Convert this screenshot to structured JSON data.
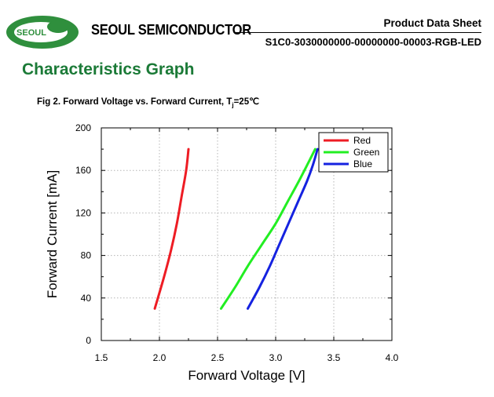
{
  "header": {
    "logo_text": "SEOUL",
    "brand": "SEOUL SEMICONDUCTOR",
    "doc_type": "Product Data Sheet",
    "part_number": "S1C0-3030000000-00000000-00003-RGB-LED"
  },
  "section_title": "Characteristics Graph",
  "figure": {
    "title_prefix": "Fig 2. Forward Voltage vs. Forward Current, T",
    "title_sub": "j",
    "title_suffix": "=25℃"
  },
  "chart_data": {
    "type": "line",
    "xlabel": "Forward Voltage [V]",
    "ylabel": "Forward Current [mA]",
    "xlim": [
      1.5,
      4.0
    ],
    "ylim": [
      0,
      200
    ],
    "xticks": [
      "1.5",
      "2.0",
      "2.5",
      "3.0",
      "3.5",
      "4.0"
    ],
    "yticks": [
      "0",
      "40",
      "80",
      "120",
      "160",
      "200"
    ],
    "grid": true,
    "legend_position": "top-right",
    "series": [
      {
        "name": "Red",
        "color": "#ee1c24",
        "x": [
          1.96,
          2.04,
          2.1,
          2.15,
          2.19,
          2.23,
          2.25
        ],
        "y": [
          30,
          60,
          85,
          110,
          135,
          160,
          180
        ]
      },
      {
        "name": "Green",
        "color": "#22ee22",
        "x": [
          2.53,
          2.65,
          2.76,
          2.88,
          3.0,
          3.1,
          3.2,
          3.28,
          3.34
        ],
        "y": [
          30,
          50,
          70,
          90,
          110,
          130,
          150,
          167,
          180
        ]
      },
      {
        "name": "Blue",
        "color": "#1522e0",
        "x": [
          2.76,
          2.86,
          2.95,
          3.03,
          3.11,
          3.19,
          3.27,
          3.32,
          3.36
        ],
        "y": [
          30,
          50,
          70,
          90,
          110,
          130,
          150,
          165,
          180
        ]
      }
    ]
  }
}
